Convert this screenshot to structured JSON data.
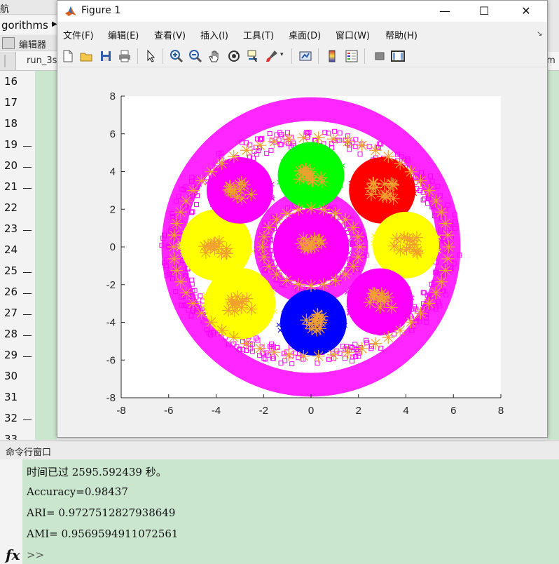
{
  "background": {
    "folder_tab_fragment": "航",
    "folder_name": "gorithms",
    "editor_label": "编辑器",
    "tab_fragment": "run_3s",
    "tab_right_fragment": ".m",
    "line_numbers": [
      "16",
      "17",
      "18",
      "19",
      "20",
      "21",
      "22",
      "23",
      "24",
      "25",
      "26",
      "27",
      "28",
      "29",
      "30",
      "31",
      "32",
      "33"
    ],
    "dash_rows": [
      "19",
      "20",
      "21",
      "23",
      "25",
      "26",
      "27",
      "28",
      "29",
      "32"
    ]
  },
  "command_window": {
    "title": "命令行窗口",
    "lines": [
      "时间已过 2595.592439 秒。",
      "Accuracy=0.98437",
      "ARI= 0.9727512827938649",
      "AMI= 0.9569594911072561"
    ],
    "prompt": ">>",
    "fx_label": "fx"
  },
  "figure": {
    "title": "Figure 1",
    "window_buttons": {
      "minimize": "—",
      "maximize": "☐",
      "close": "✕"
    },
    "menu": [
      "文件(F)",
      "编辑(E)",
      "查看(V)",
      "插入(I)",
      "工具(T)",
      "桌面(D)",
      "窗口(W)",
      "帮助(H)"
    ],
    "menu_more": "↘",
    "toolbar_icons": [
      "new-figure-icon",
      "open-file-icon",
      "save-icon",
      "print-icon",
      "select-arrow-icon",
      "zoom-in-icon",
      "zoom-out-icon",
      "pan-hand-icon",
      "rotate-3d-icon",
      "data-cursor-icon",
      "brush-icon",
      "link-plot-icon",
      "colorbar-icon",
      "legend-icon",
      "hide-plot-tools-icon",
      "show-plot-tools-icon"
    ]
  },
  "chart_data": {
    "type": "scatter",
    "title": "",
    "xlabel": "",
    "ylabel": "",
    "xlim": [
      -8,
      8
    ],
    "ylim": [
      -8,
      8
    ],
    "xticks": [
      -8,
      -6,
      -4,
      -2,
      0,
      2,
      4,
      6,
      8
    ],
    "yticks": [
      -8,
      -6,
      -4,
      -2,
      0,
      2,
      4,
      6,
      8
    ],
    "grid": false,
    "legend": "none",
    "colors": {
      "magenta": "#ff00ff",
      "green": "#00ff00",
      "red": "#ff0000",
      "yellow": "#ffff00",
      "blue": "#0000ff",
      "centroid": "#f0a030"
    },
    "series": [
      {
        "cluster": "outer-ring",
        "shape": "ring",
        "color": "magenta",
        "r_inner": 5.3,
        "r_outer": 6.3
      },
      {
        "cluster": "inner-ring",
        "shape": "ring",
        "color": "magenta",
        "r_inner": 1.7,
        "r_outer": 2.4
      },
      {
        "cluster": "inner-disk",
        "shape": "disk",
        "color": "magenta",
        "center": [
          0,
          0
        ],
        "radius": 1.6
      },
      {
        "cluster": "green-blob",
        "shape": "blob",
        "color": "green",
        "center": [
          0,
          3.8
        ],
        "radius": 1.4
      },
      {
        "cluster": "red-blob",
        "shape": "blob",
        "color": "red",
        "center": [
          3,
          3
        ],
        "radius": 1.4
      },
      {
        "cluster": "yellow-right",
        "shape": "blob",
        "color": "yellow",
        "center": [
          4,
          0.1
        ],
        "radius": 1.4
      },
      {
        "cluster": "magenta-br",
        "shape": "blob",
        "color": "magenta",
        "center": [
          2.9,
          -2.9
        ],
        "radius": 1.4
      },
      {
        "cluster": "blue-blob",
        "shape": "blob",
        "color": "blue",
        "center": [
          0.1,
          -4
        ],
        "radius": 1.4
      },
      {
        "cluster": "yellow-bl",
        "shape": "blob",
        "color": "yellow",
        "center": [
          -3,
          -3
        ],
        "radius": 1.5
      },
      {
        "cluster": "yellow-left",
        "shape": "blob",
        "color": "yellow",
        "center": [
          -4,
          0.1
        ],
        "radius": 1.5
      },
      {
        "cluster": "magenta-tl",
        "shape": "blob",
        "color": "magenta",
        "center": [
          -3,
          3
        ],
        "radius": 1.4
      }
    ],
    "cluster_centers": [
      [
        0,
        3.8
      ],
      [
        3,
        3
      ],
      [
        4,
        0.1
      ],
      [
        2.9,
        -2.9
      ],
      [
        0.1,
        -4
      ],
      [
        -3,
        -3
      ],
      [
        -4,
        0.1
      ],
      [
        -3,
        3
      ],
      [
        0,
        0
      ]
    ]
  }
}
